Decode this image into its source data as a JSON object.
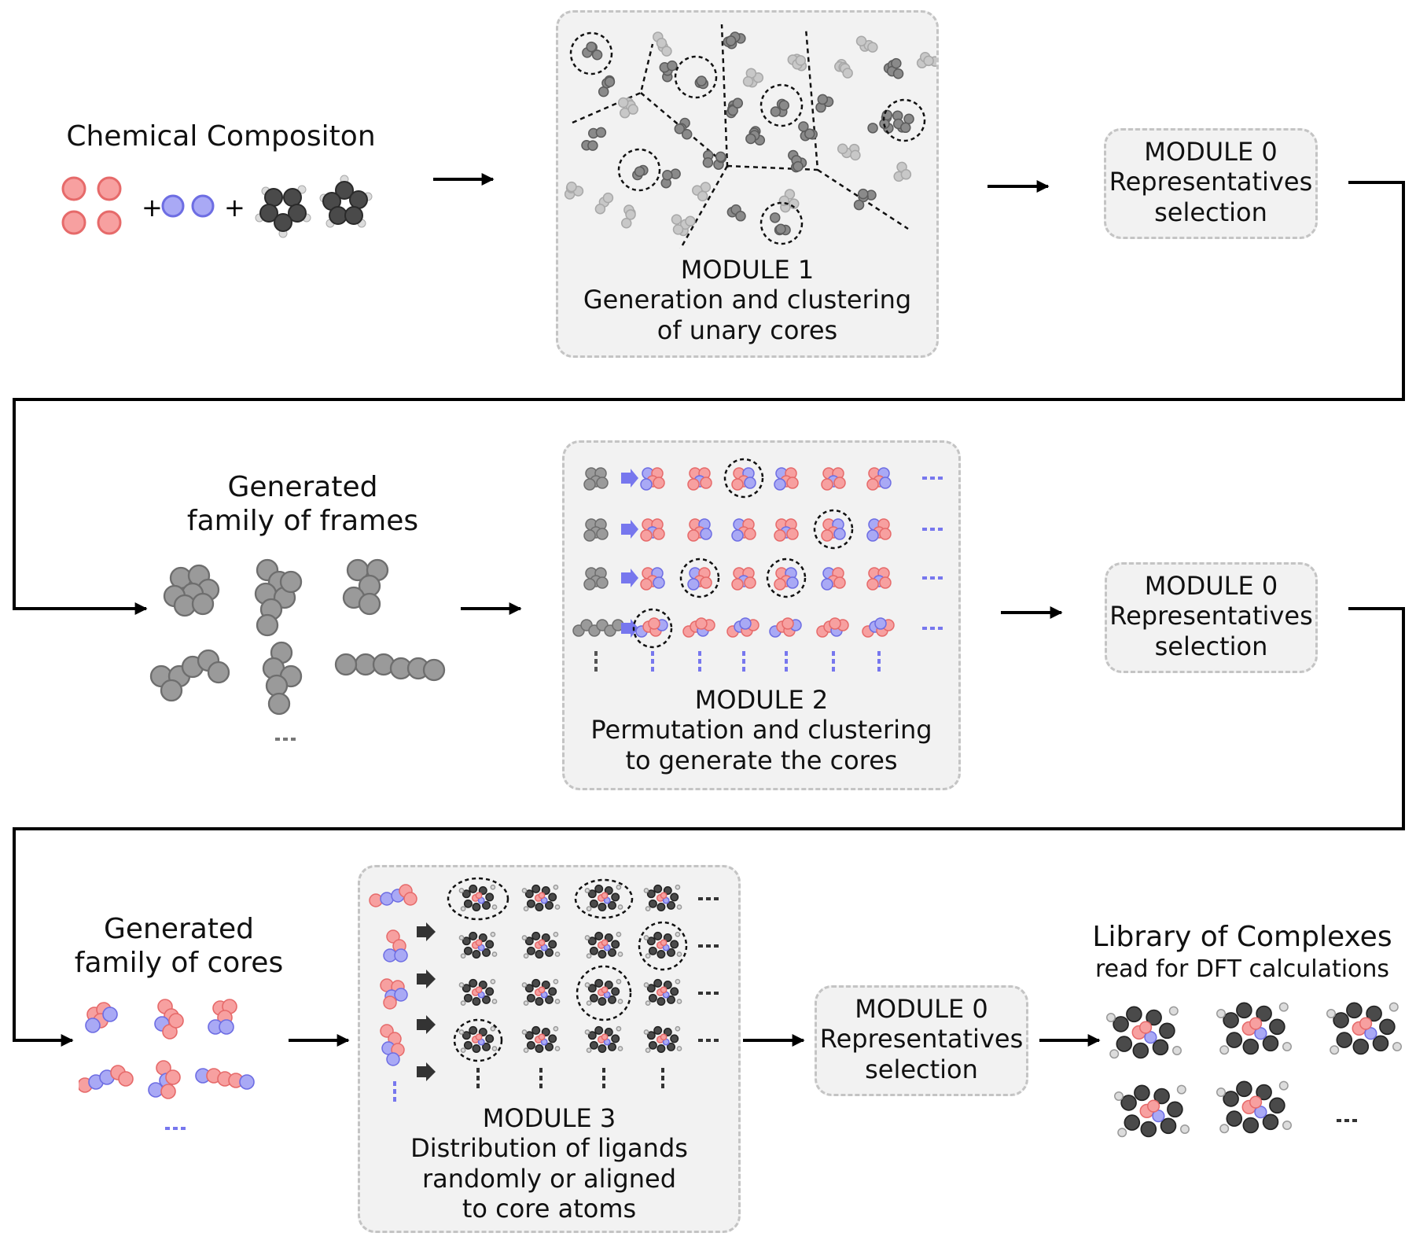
{
  "row1": {
    "composition_title": "Chemical Compositon",
    "plus": "+",
    "module1": {
      "title": "MODULE 1",
      "line1": "Generation and clustering",
      "line2": "of unary cores"
    },
    "module0": {
      "title": "MODULE 0",
      "line1": "Representatives",
      "line2": "selection"
    }
  },
  "row2": {
    "frames_line1": "Generated",
    "frames_line2": "family of frames",
    "module2": {
      "title": "MODULE 2",
      "line1": "Permutation and clustering",
      "line2": "to generate the cores"
    },
    "module0": {
      "title": "MODULE 0",
      "line1": "Representatives",
      "line2": "selection"
    }
  },
  "row3": {
    "cores_line1": "Generated",
    "cores_line2": "family of cores",
    "module3": {
      "title": "MODULE 3",
      "line1": "Distribution of ligands",
      "line2": "randomly or aligned",
      "line3": "to core atoms"
    },
    "module0": {
      "title": "MODULE 0",
      "line1": "Representatives",
      "line2": "selection"
    },
    "library_title": "Library of Complexes",
    "library_subtitle": "read for DFT calculations"
  },
  "colors": {
    "metal_a": "#f7a0a0",
    "metal_a_stroke": "#e66a6a",
    "metal_b": "#a9a9f5",
    "metal_b_stroke": "#6d6de3",
    "frame_atom": "#9a9a9a",
    "frame_stroke": "#6e6e6e",
    "ligand_carbon": "#4a4a4a",
    "ligand_hydrogen": "#dcdcdc",
    "module_fill": "#f2f2f2",
    "module_border": "#c4c4c4",
    "arrow_ligand": "#7777ee",
    "arrow_dark": "#333333"
  }
}
